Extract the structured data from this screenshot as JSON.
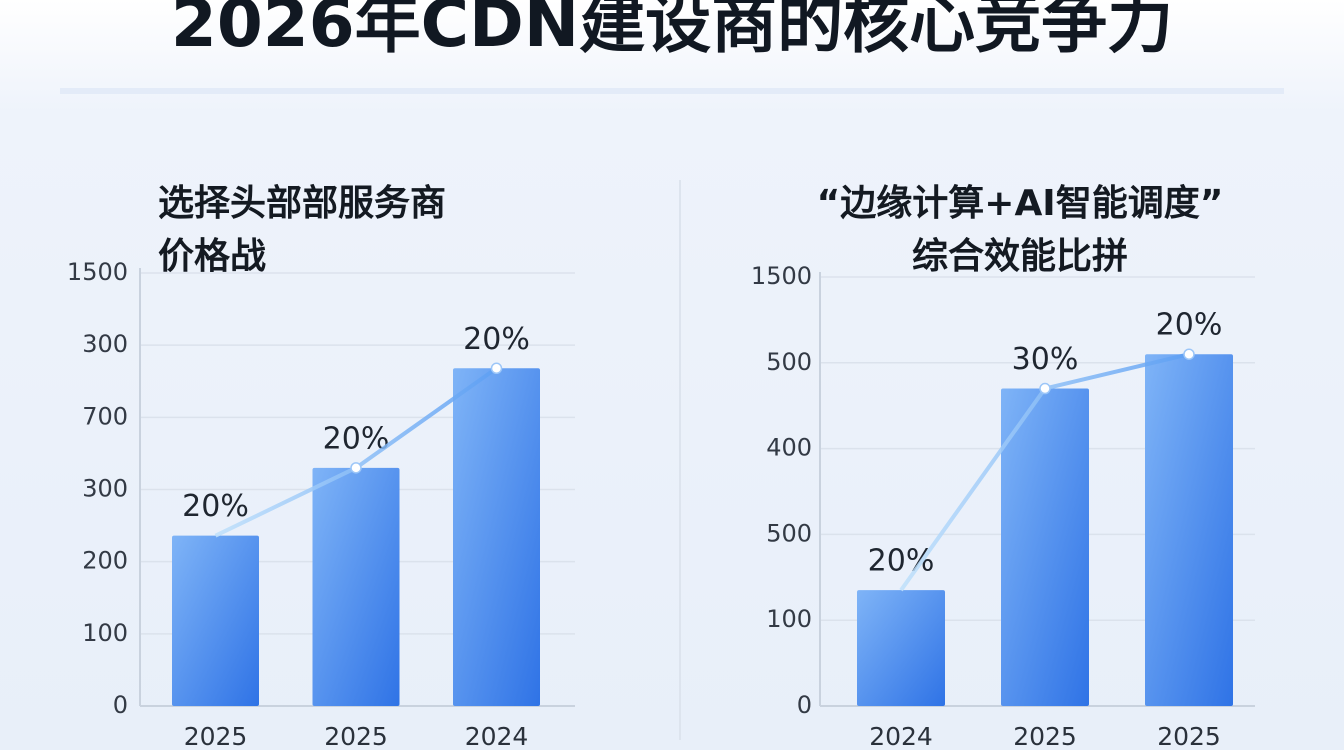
{
  "title": "2026年CDN建设商的核心竞争力",
  "chart_data": [
    {
      "type": "bar",
      "title": [
        "选择头部部服务商",
        "价格战"
      ],
      "categories": [
        "2025",
        "2025",
        "2024"
      ],
      "values": [
        590,
        825,
        1170
      ],
      "annotations": [
        "20%",
        "20%",
        "20%"
      ],
      "color": "#4a8cf0",
      "ylim": [
        0,
        1500
      ],
      "yticks": [
        0,
        {
          "value": 250,
          "label": "100"
        },
        {
          "value": 500,
          "label": "200"
        },
        {
          "value": 750,
          "label": "300"
        },
        {
          "value": 1000,
          "label": "700"
        },
        {
          "value": 1250,
          "label": "300"
        },
        1500
      ],
      "grid": true
    },
    {
      "type": "bar",
      "title": [
        "“边缘计算+AI智能调度”",
        "综合效能比拼"
      ],
      "categories": [
        "2024",
        "2025",
        "2025"
      ],
      "values": [
        405,
        1110,
        1230
      ],
      "annotations": [
        "20%",
        "30%",
        "20%"
      ],
      "color": "#4a8cf0",
      "ylim": [
        0,
        1500
      ],
      "yticks": [
        0,
        {
          "value": 300,
          "label": "100"
        },
        {
          "value": 600,
          "label": "500"
        },
        {
          "value": 900,
          "label": "400"
        },
        {
          "value": 1200,
          "label": "500"
        },
        1500
      ],
      "grid": true
    }
  ]
}
